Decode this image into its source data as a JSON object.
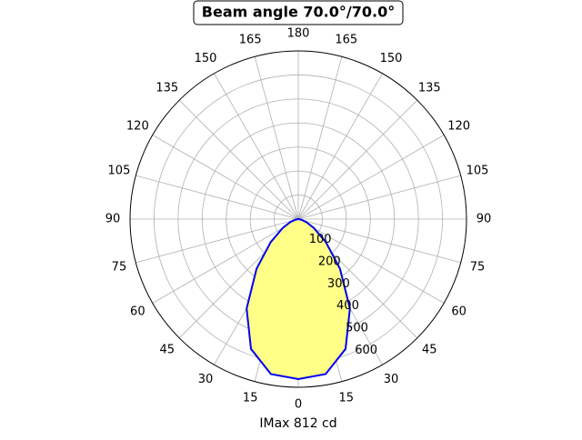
{
  "chart_data": {
    "type": "polar",
    "title": "Beam angle 70.0°/70.0°",
    "xlabel": "IMax 812 cd",
    "x": [
      -90,
      -80,
      -70,
      -60,
      -50,
      -40,
      -30,
      -20,
      -10,
      0,
      10,
      20,
      30,
      40,
      50,
      60,
      70,
      80,
      90
    ],
    "values": [
      0,
      12,
      35,
      75,
      150,
      270,
      430,
      575,
      655,
      666,
      655,
      575,
      430,
      270,
      150,
      75,
      35,
      12,
      0
    ],
    "color": "#0000ee",
    "fill": "#ffff88",
    "ylim": [
      0,
      700
    ],
    "yticks": [
      100,
      200,
      300,
      400,
      500,
      600
    ],
    "thetaticks": [
      0,
      15,
      30,
      45,
      60,
      75,
      90,
      105,
      120,
      135,
      150,
      165,
      180,
      {
        "value": 195,
        "label": "165"
      },
      {
        "value": 210,
        "label": "150"
      },
      {
        "value": 225,
        "label": "135"
      },
      {
        "value": 240,
        "label": "120"
      },
      {
        "value": 255,
        "label": "105"
      },
      {
        "value": 270,
        "label": "90"
      },
      {
        "value": 285,
        "label": "75"
      },
      {
        "value": 300,
        "label": "60"
      },
      {
        "value": 315,
        "label": "45"
      },
      {
        "value": 330,
        "label": "30"
      },
      {
        "value": 345,
        "label": "15"
      }
    ],
    "grid": true
  }
}
